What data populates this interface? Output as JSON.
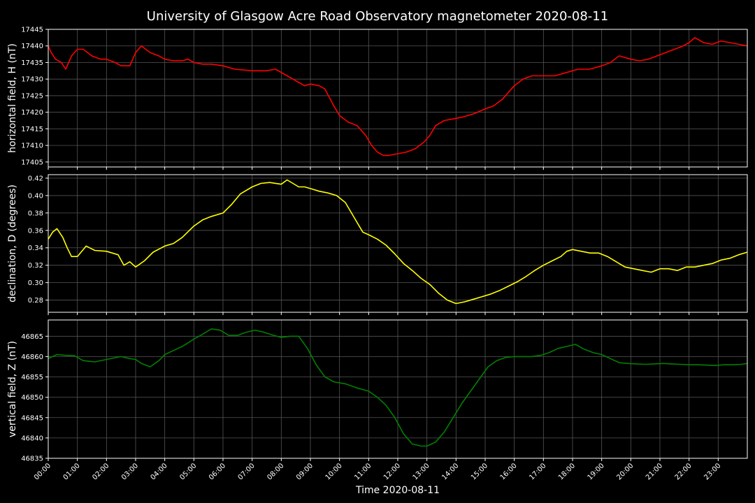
{
  "chart_data": {
    "type": "line",
    "title": "University of Glasgow Acre Road Observatory magnetometer 2020-08-11",
    "xlabel": "Time 2020-08-11",
    "x_unit": "hours",
    "xlim": [
      0,
      24
    ],
    "x_tick_labels": [
      "00:00",
      "01:00",
      "02:00",
      "03:00",
      "04:00",
      "05:00",
      "06:00",
      "07:00",
      "08:00",
      "09:00",
      "10:00",
      "11:00",
      "12:00",
      "13:00",
      "14:00",
      "15:00",
      "16:00",
      "17:00",
      "18:00",
      "19:00",
      "20:00",
      "21:00",
      "22:00",
      "23:00"
    ],
    "background": "#000000",
    "grid": true,
    "panels": [
      {
        "ylabel": "horizontal field, H (nT)",
        "color": "#ff0000",
        "ylim": [
          17403.5,
          17445
        ],
        "yticks": [
          17405,
          17410,
          17415,
          17420,
          17425,
          17430,
          17435,
          17440,
          17445
        ],
        "x": [
          0,
          0.1,
          0.25,
          0.45,
          0.6,
          0.8,
          1.0,
          1.2,
          1.5,
          1.8,
          2.0,
          2.3,
          2.5,
          2.8,
          3.0,
          3.2,
          3.5,
          3.8,
          4.0,
          4.3,
          4.6,
          4.8,
          5.0,
          5.3,
          5.6,
          6.0,
          6.4,
          7.0,
          7.5,
          7.8,
          8.0,
          8.2,
          8.4,
          8.6,
          8.8,
          9.0,
          9.3,
          9.5,
          9.8,
          10.0,
          10.3,
          10.6,
          10.9,
          11.1,
          11.3,
          11.5,
          11.7,
          12.0,
          12.3,
          12.6,
          12.9,
          13.1,
          13.3,
          13.6,
          13.9,
          14.2,
          14.6,
          15.0,
          15.3,
          15.6,
          16.0,
          16.3,
          16.6,
          17.0,
          17.4,
          17.8,
          18.2,
          18.6,
          19.0,
          19.3,
          19.6,
          20.0,
          20.3,
          20.6,
          20.9,
          21.2,
          21.5,
          21.8,
          22.0,
          22.2,
          22.5,
          22.8,
          23.1,
          23.4,
          23.7,
          24.0
        ],
        "values": [
          17440,
          17438,
          17436,
          17435,
          17433,
          17437,
          17439,
          17439,
          17437,
          17436,
          17436,
          17435,
          17434,
          17434,
          17438,
          17440,
          17438,
          17437,
          17436,
          17435.5,
          17435.5,
          17436,
          17435,
          17434.5,
          17434.5,
          17434,
          17433,
          17432.5,
          17432.5,
          17433,
          17432,
          17431,
          17430,
          17429,
          17428,
          17428.5,
          17428,
          17427,
          17422,
          17419,
          17417,
          17416,
          17413,
          17410,
          17408,
          17407,
          17407,
          17407.5,
          17408,
          17409,
          17411,
          17413,
          17416,
          17417.5,
          17418,
          17418.5,
          17419.5,
          17421,
          17422,
          17424,
          17428,
          17430,
          17431,
          17431,
          17431,
          17432,
          17433,
          17433,
          17434,
          17435,
          17437,
          17436,
          17435.5,
          17436,
          17437,
          17438,
          17439,
          17440,
          17441,
          17442.5,
          17441,
          17440.5,
          17441.5,
          17441,
          17440.5,
          17440
        ]
      },
      {
        "ylabel": "declination, D (degrees)",
        "color": "#ffff00",
        "ylim": [
          0.266,
          0.424
        ],
        "yticks": [
          0.28,
          0.3,
          0.32,
          0.34,
          0.36,
          0.38,
          0.4,
          0.42
        ],
        "x": [
          0,
          0.15,
          0.3,
          0.5,
          0.65,
          0.8,
          1.0,
          1.3,
          1.6,
          2.0,
          2.4,
          2.6,
          2.8,
          3.0,
          3.3,
          3.6,
          4.0,
          4.3,
          4.6,
          5.0,
          5.3,
          5.6,
          6.0,
          6.3,
          6.6,
          7.0,
          7.3,
          7.6,
          8.0,
          8.2,
          8.4,
          8.6,
          8.8,
          9.0,
          9.3,
          9.6,
          9.9,
          10.2,
          10.5,
          10.8,
          11.0,
          11.3,
          11.6,
          11.9,
          12.2,
          12.5,
          12.8,
          13.1,
          13.4,
          13.7,
          14.0,
          14.3,
          14.6,
          14.9,
          15.2,
          15.5,
          15.8,
          16.1,
          16.4,
          16.7,
          17.0,
          17.3,
          17.6,
          17.8,
          18.0,
          18.3,
          18.6,
          18.9,
          19.2,
          19.5,
          19.8,
          20.1,
          20.4,
          20.7,
          21.0,
          21.3,
          21.6,
          21.9,
          22.2,
          22.5,
          22.8,
          23.1,
          23.4,
          23.7,
          24.0
        ],
        "values": [
          0.35,
          0.358,
          0.362,
          0.352,
          0.34,
          0.33,
          0.33,
          0.342,
          0.337,
          0.336,
          0.332,
          0.32,
          0.324,
          0.318,
          0.325,
          0.335,
          0.342,
          0.345,
          0.352,
          0.365,
          0.372,
          0.376,
          0.38,
          0.39,
          0.402,
          0.41,
          0.414,
          0.415,
          0.413,
          0.418,
          0.414,
          0.41,
          0.41,
          0.408,
          0.405,
          0.403,
          0.4,
          0.392,
          0.375,
          0.358,
          0.355,
          0.35,
          0.343,
          0.333,
          0.322,
          0.314,
          0.305,
          0.298,
          0.288,
          0.28,
          0.276,
          0.278,
          0.281,
          0.284,
          0.287,
          0.291,
          0.296,
          0.301,
          0.307,
          0.314,
          0.32,
          0.325,
          0.33,
          0.336,
          0.338,
          0.336,
          0.334,
          0.334,
          0.33,
          0.324,
          0.318,
          0.316,
          0.314,
          0.312,
          0.316,
          0.316,
          0.314,
          0.318,
          0.318,
          0.32,
          0.322,
          0.326,
          0.328,
          0.332,
          0.335
        ]
      },
      {
        "ylabel": "vertical field, Z (nT)",
        "color": "#008000",
        "ylim": [
          46835,
          46869
        ],
        "yticks": [
          46835,
          46840,
          46845,
          46850,
          46855,
          46860,
          46865
        ],
        "x": [
          0,
          0.3,
          0.6,
          0.9,
          1.2,
          1.6,
          2.0,
          2.5,
          2.8,
          3.0,
          3.2,
          3.5,
          3.8,
          4.0,
          4.3,
          4.6,
          5.0,
          5.3,
          5.6,
          5.9,
          6.2,
          6.5,
          6.8,
          7.1,
          7.4,
          7.7,
          8.0,
          8.3,
          8.6,
          8.9,
          9.2,
          9.5,
          9.8,
          10.2,
          10.6,
          11.0,
          11.3,
          11.6,
          11.9,
          12.2,
          12.5,
          12.8,
          13.0,
          13.3,
          13.6,
          13.9,
          14.2,
          14.5,
          14.8,
          15.1,
          15.4,
          15.7,
          16.0,
          16.3,
          16.6,
          16.9,
          17.2,
          17.5,
          17.8,
          18.1,
          18.4,
          18.7,
          19.0,
          19.3,
          19.6,
          19.9,
          20.2,
          20.5,
          20.8,
          21.1,
          21.4,
          21.7,
          22.0,
          22.3,
          22.6,
          22.9,
          23.2,
          23.5,
          23.8,
          24.0
        ],
        "values": [
          46859.5,
          46860.5,
          46860.3,
          46860.2,
          46859,
          46858.7,
          46859.3,
          46860,
          46859.5,
          46859.3,
          46858.3,
          46857.5,
          46859,
          46860.5,
          46861.5,
          46862.5,
          46864.3,
          46865.5,
          46866.8,
          46866.5,
          46865.2,
          46865.2,
          46866,
          46866.5,
          46866,
          46865.3,
          46864.7,
          46865,
          46865,
          46862,
          46858,
          46855,
          46853.8,
          46853.3,
          46852.3,
          46851.5,
          46850,
          46848,
          46845,
          46841,
          46838.5,
          46838,
          46838,
          46839,
          46841.5,
          46845,
          46848.5,
          46851.5,
          46854.5,
          46857.5,
          46859,
          46859.8,
          46860,
          46860,
          46860,
          46860.3,
          46861,
          46862,
          46862.5,
          46863,
          46861.8,
          46861,
          46860.5,
          46859.5,
          46858.5,
          46858.3,
          46858.2,
          46858.1,
          46858.2,
          46858.3,
          46858.2,
          46858.1,
          46858,
          46858,
          46857.9,
          46857.8,
          46858,
          46858,
          46858.1,
          46858.3
        ]
      }
    ]
  }
}
